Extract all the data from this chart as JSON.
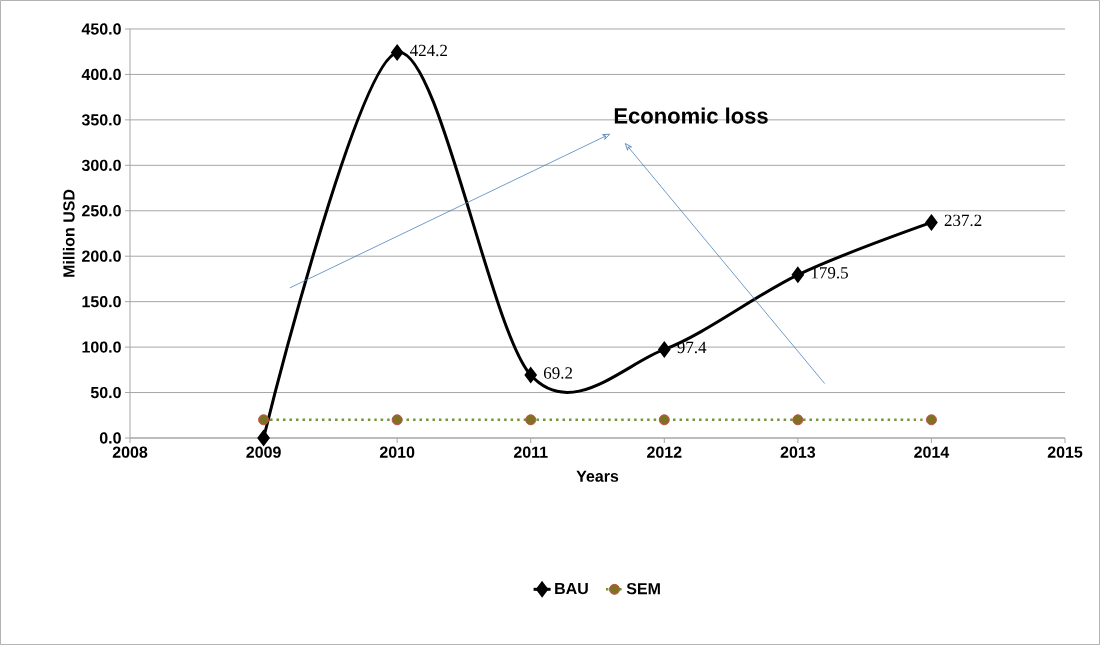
{
  "chart_data": {
    "type": "line",
    "xlabel": "Years",
    "ylabel": "Million USD",
    "x": [
      2009,
      2010,
      2011,
      2012,
      2013,
      2014
    ],
    "series": [
      {
        "name": "BAU",
        "color": "#000000",
        "values": [
          0,
          424.2,
          69.2,
          97.4,
          179.5,
          237.2
        ],
        "value_labels": [
          null,
          "424.2",
          "69.2",
          "97.4",
          "179.5",
          "237.2"
        ],
        "marker": "diamond",
        "line_style": "solid"
      },
      {
        "name": "SEM",
        "color": "#77933c",
        "values": [
          20,
          20,
          20,
          20,
          20,
          20
        ],
        "marker": "circle",
        "line_style": "dotted"
      }
    ],
    "xlim": [
      2008,
      2015
    ],
    "xticks": [
      2008,
      2009,
      2010,
      2011,
      2012,
      2013,
      2014,
      2015
    ],
    "ylim": [
      0,
      450
    ],
    "yticks": [
      {
        "value": 0,
        "label": "0.0"
      },
      {
        "value": 50,
        "label": "50.0"
      },
      {
        "value": 100,
        "label": "100.0"
      },
      {
        "value": 150,
        "label": "150.0"
      },
      {
        "value": 200,
        "label": "200.0"
      },
      {
        "value": 250,
        "label": "250.0"
      },
      {
        "value": 300,
        "label": "300.0"
      },
      {
        "value": 350,
        "label": "350.0"
      },
      {
        "value": 400,
        "label": "400.0"
      },
      {
        "value": 450,
        "label": "450.0"
      }
    ],
    "grid": "y",
    "legend": "bottom",
    "annotations": [
      "Economic loss"
    ]
  }
}
